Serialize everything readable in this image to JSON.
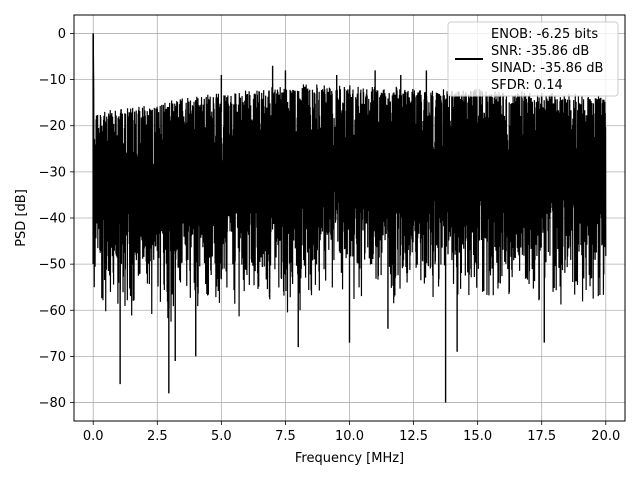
{
  "chart_data": {
    "type": "line",
    "title": "",
    "xlabel": "Frequency [MHz]",
    "ylabel": "PSD [dB]",
    "xlim": [
      -0.75,
      20.75
    ],
    "ylim": [
      -84,
      4
    ],
    "xticks": [
      0.0,
      2.5,
      5.0,
      7.5,
      10.0,
      12.5,
      15.0,
      17.5,
      20.0
    ],
    "xtick_labels": [
      "0.0",
      "2.5",
      "5.0",
      "7.5",
      "10.0",
      "12.5",
      "15.0",
      "17.5",
      "20.0"
    ],
    "yticks": [
      0,
      -10,
      -20,
      -30,
      -40,
      -50,
      -60,
      -70,
      -80
    ],
    "ytick_labels": [
      "0",
      "−10",
      "−20",
      "−30",
      "−40",
      "−50",
      "−60",
      "−70",
      "−80"
    ],
    "grid": true,
    "legend_position": "top-right",
    "series": [
      {
        "name": "ENOB: -6.25 bits\nSNR: -35.86 dB\nSINAD: -35.86 dB\nSFDR: 0.14",
        "color": "#000000",
        "peak": {
          "x": 0.0,
          "y": 0
        },
        "upper_envelope": {
          "x": [
            0.0,
            0.1,
            0.5,
            1.0,
            2.0,
            2.5,
            3.0,
            4.0,
            5.0,
            6.0,
            7.0,
            8.0,
            9.0,
            10.0,
            11.0,
            12.0,
            13.0,
            14.0,
            15.0,
            16.0,
            17.0,
            18.0,
            19.0,
            20.0
          ],
          "y": [
            -16,
            -17,
            -16.5,
            -16,
            -15.5,
            -15,
            -14.5,
            -13.5,
            -12.5,
            -12,
            -11.5,
            -11,
            -11,
            -11,
            -11.5,
            -11.5,
            -12,
            -12,
            -12,
            -12.5,
            -12.5,
            -13,
            -13,
            -13.5
          ]
        },
        "lower_envelope": {
          "x": [
            0.0,
            0.2,
            0.5,
            1.0,
            2.0,
            3.0,
            4.0,
            5.0,
            6.0,
            7.0,
            8.0,
            9.0,
            10.0,
            11.0,
            12.0,
            13.0,
            14.0,
            15.0,
            16.0,
            17.0,
            18.0,
            19.0,
            20.0
          ],
          "y": [
            -60,
            -58,
            -60,
            -61,
            -60,
            -62,
            -59,
            -58,
            -60,
            -58,
            -59,
            -59,
            -59,
            -58,
            -59,
            -58,
            -58,
            -57,
            -57,
            -58,
            -58,
            -58,
            -59
          ]
        },
        "notable_dips": [
          {
            "x": 1.05,
            "y": -76
          },
          {
            "x": 2.95,
            "y": -78
          },
          {
            "x": 3.2,
            "y": -71
          },
          {
            "x": 4.0,
            "y": -70
          },
          {
            "x": 8.0,
            "y": -68
          },
          {
            "x": 10.0,
            "y": -67
          },
          {
            "x": 11.5,
            "y": -64
          },
          {
            "x": 13.75,
            "y": -80
          },
          {
            "x": 14.2,
            "y": -69
          },
          {
            "x": 17.6,
            "y": -67
          }
        ],
        "notable_peaks": [
          {
            "x": 5.0,
            "y": -9
          },
          {
            "x": 7.0,
            "y": -7
          },
          {
            "x": 7.5,
            "y": -8
          },
          {
            "x": 9.5,
            "y": -9
          },
          {
            "x": 11.0,
            "y": -8
          },
          {
            "x": 12.0,
            "y": -9
          },
          {
            "x": 13.0,
            "y": -8
          }
        ]
      }
    ]
  }
}
